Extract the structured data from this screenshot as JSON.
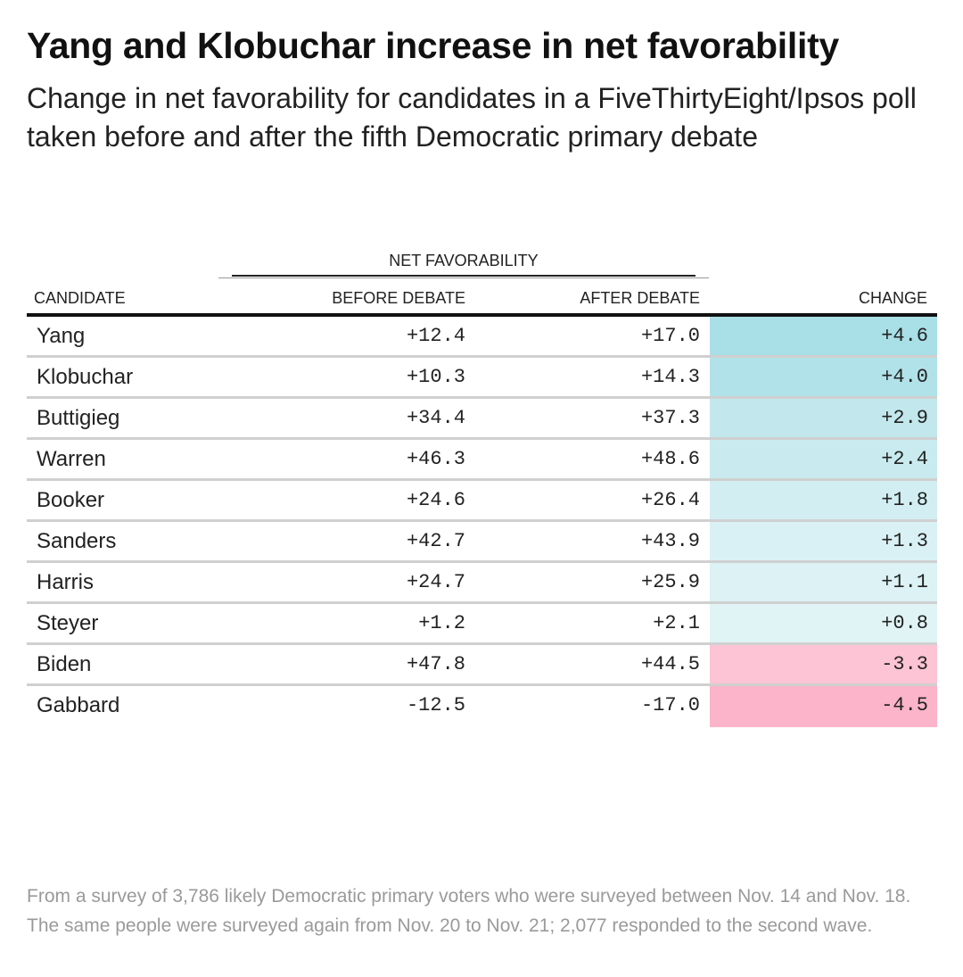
{
  "chart_data": {
    "type": "table",
    "title": "Yang and Klobuchar increase in net favorability",
    "subtitle": "Change in net favorability for candidates in a FiveThirtyEight/Ipsos poll taken before and after the fifth Democratic primary debate",
    "group_header": "NET FAVORABILITY",
    "columns": {
      "candidate": "CANDIDATE",
      "before": "BEFORE DEBATE",
      "after": "AFTER DEBATE",
      "change": "CHANGE"
    },
    "rows": [
      {
        "candidate": "Yang",
        "before": "+12.4",
        "after": "+17.0",
        "change": "+4.6",
        "change_value": 4.6
      },
      {
        "candidate": "Klobuchar",
        "before": "+10.3",
        "after": "+14.3",
        "change": "+4.0",
        "change_value": 4.0
      },
      {
        "candidate": "Buttigieg",
        "before": "+34.4",
        "after": "+37.3",
        "change": "+2.9",
        "change_value": 2.9
      },
      {
        "candidate": "Warren",
        "before": "+46.3",
        "after": "+48.6",
        "change": "+2.4",
        "change_value": 2.4
      },
      {
        "candidate": "Booker",
        "before": "+24.6",
        "after": "+26.4",
        "change": "+1.8",
        "change_value": 1.8
      },
      {
        "candidate": "Sanders",
        "before": "+42.7",
        "after": "+43.9",
        "change": "+1.3",
        "change_value": 1.3
      },
      {
        "candidate": "Harris",
        "before": "+24.7",
        "after": "+25.9",
        "change": "+1.1",
        "change_value": 1.1
      },
      {
        "candidate": "Steyer",
        "before": "+1.2",
        "after": "+2.1",
        "change": "+0.8",
        "change_value": 0.8
      },
      {
        "candidate": "Biden",
        "before": "+47.8",
        "after": "+44.5",
        "change": "-3.3",
        "change_value": -3.3
      },
      {
        "candidate": "Gabbard",
        "before": "-12.5",
        "after": "-17.0",
        "change": "-4.5",
        "change_value": -4.5
      }
    ],
    "colors": {
      "positive": "#a9dfe6",
      "negative": "#fbb3c9"
    }
  },
  "footnote": "From a survey of 3,786 likely Democratic primary voters who were surveyed between Nov. 14 and Nov. 18. The same people were surveyed again from Nov. 20 to Nov. 21; 2,077 responded to the second wave."
}
